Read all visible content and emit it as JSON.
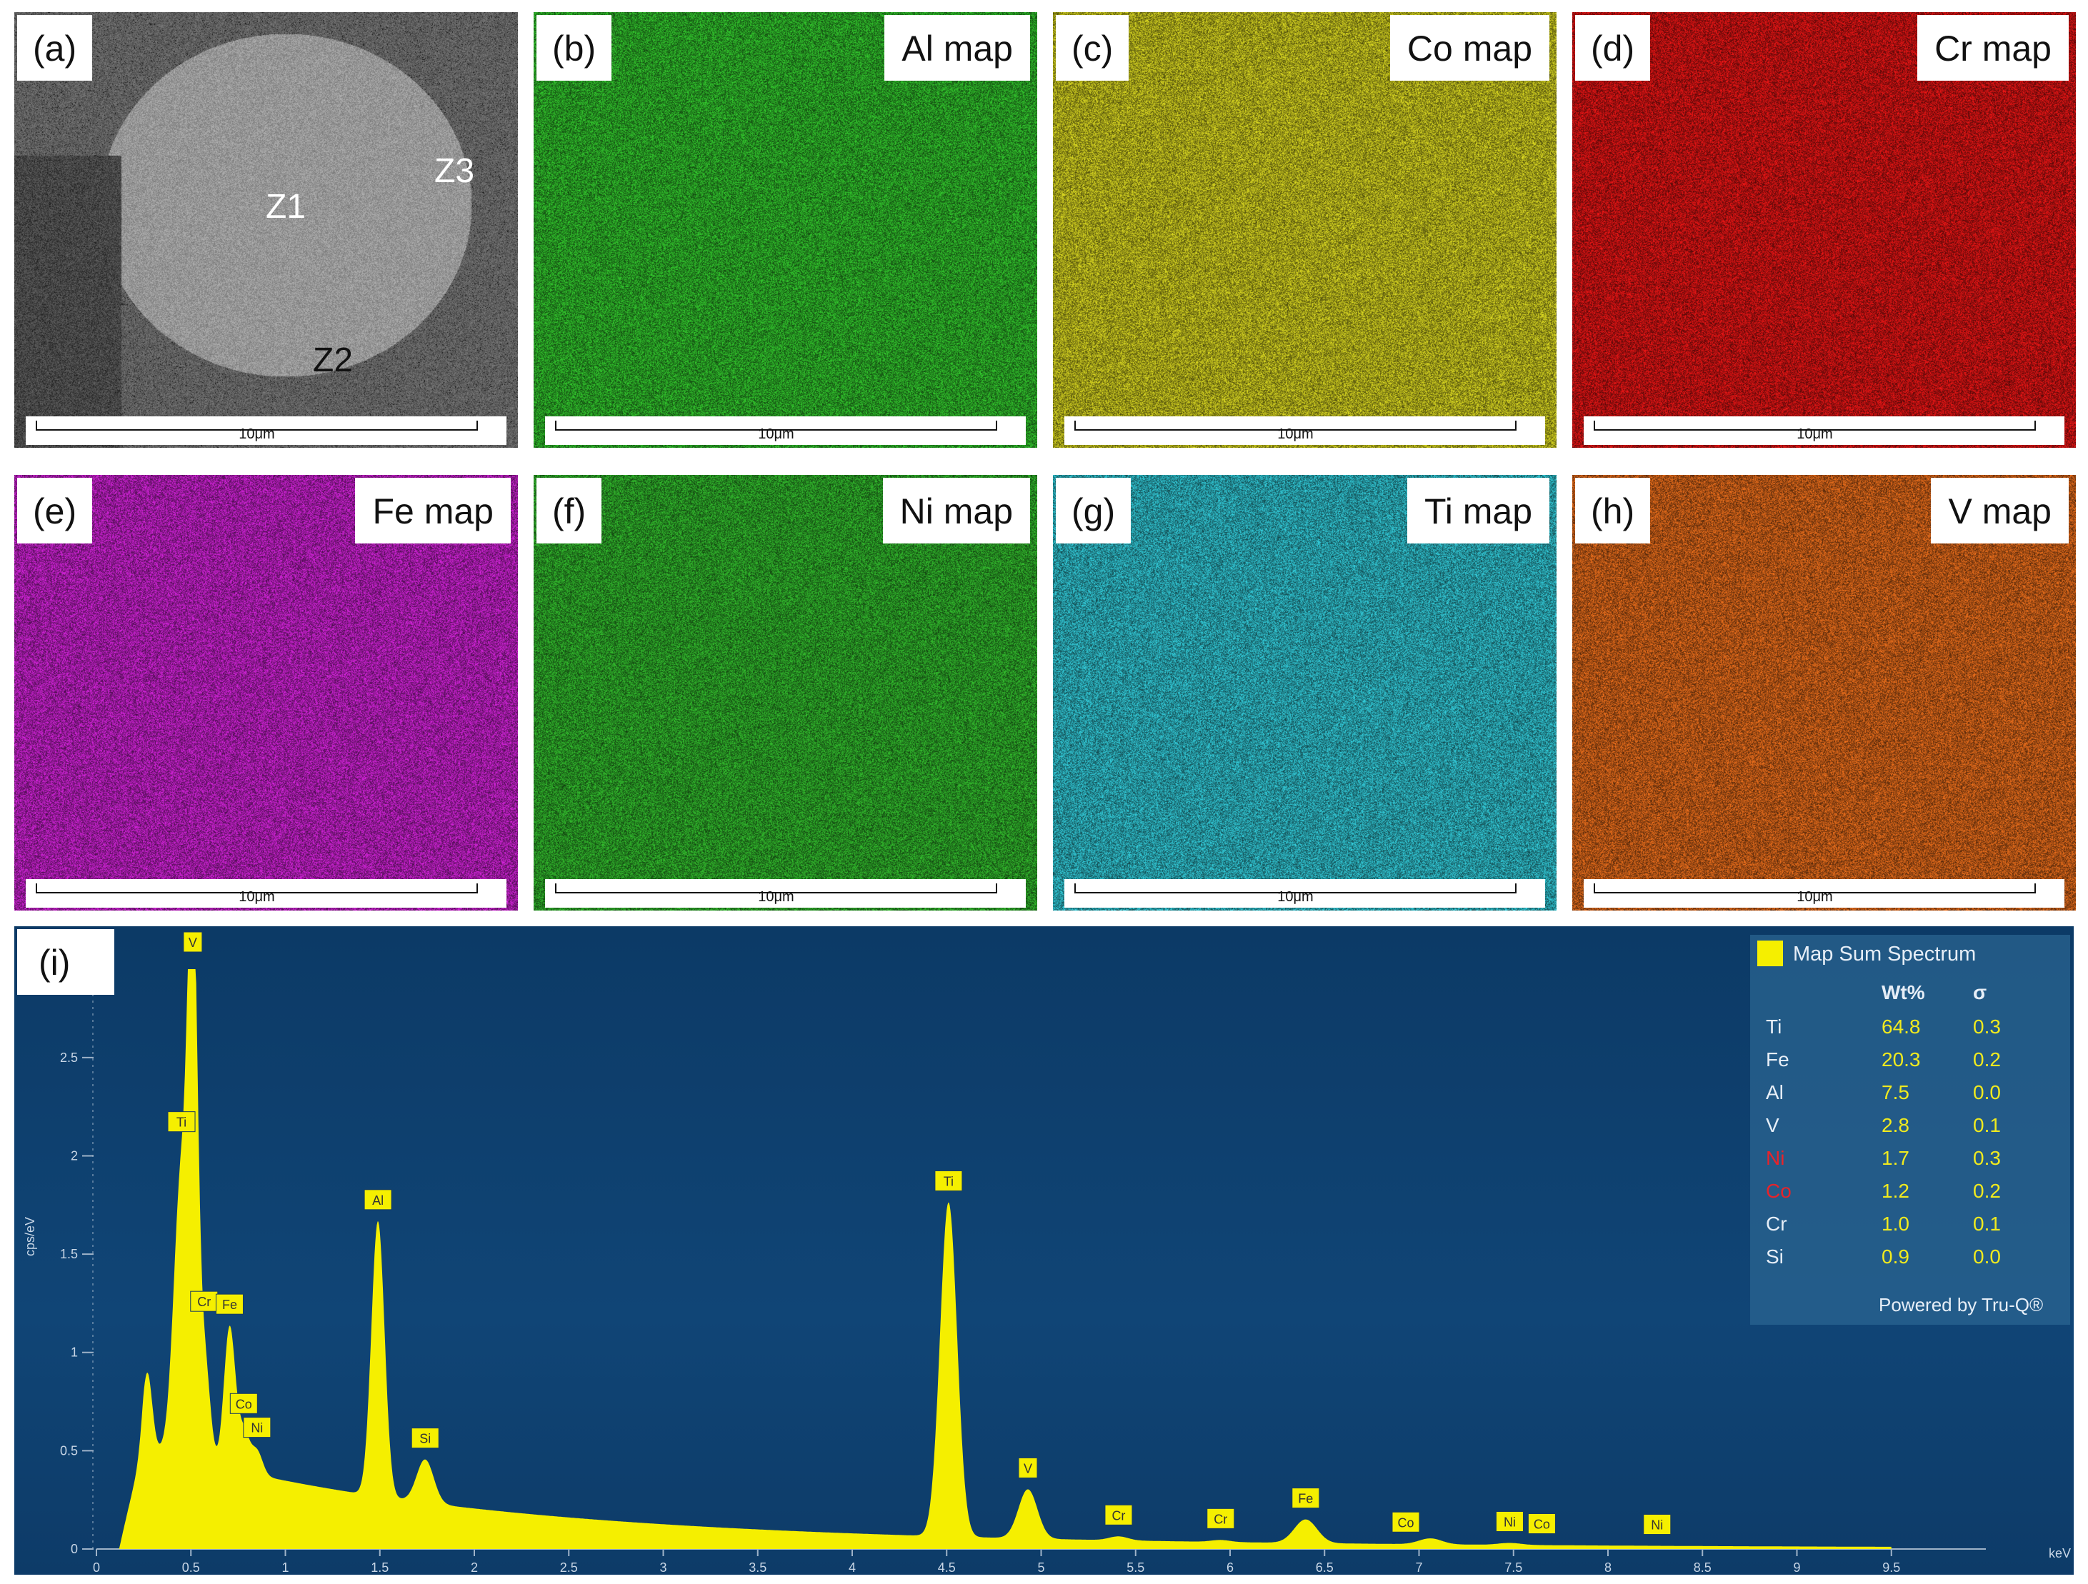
{
  "panels": [
    {
      "id": "a",
      "label": "(a)",
      "map": "",
      "scale": "10μm",
      "color": "#8a8a8a"
    },
    {
      "id": "b",
      "label": "(b)",
      "map": "Al map",
      "scale": "10μm",
      "color": "#2fb82a"
    },
    {
      "id": "c",
      "label": "(c)",
      "map": "Co map",
      "scale": "10μm",
      "color": "#c9c71f"
    },
    {
      "id": "d",
      "label": "(d)",
      "map": "Cr map",
      "scale": "10μm",
      "color": "#d81414"
    },
    {
      "id": "e",
      "label": "(e)",
      "map": "Fe map",
      "scale": "10μm",
      "color": "#c321c9"
    },
    {
      "id": "f",
      "label": "(f)",
      "map": "Ni map",
      "scale": "10μm",
      "color": "#2fae2a"
    },
    {
      "id": "g",
      "label": "(g)",
      "map": "Ti map",
      "scale": "10μm",
      "color": "#2fbcc9"
    },
    {
      "id": "h",
      "label": "(h)",
      "map": "V map",
      "scale": "10μm",
      "color": "#d9661a"
    }
  ],
  "zones": {
    "z1": "Z1",
    "z2": "Z2",
    "z3": "Z3"
  },
  "spectrum": {
    "label": "(i)",
    "bg_color": "#0f3f6c",
    "fill_color": "#f5ef00",
    "ylabel": "cps/eV",
    "xunit": "keV",
    "legend_title": "Map Sum Spectrum",
    "table_head": {
      "col1": "Wt%",
      "col2": "σ"
    },
    "powered": "Powered by Tru-Q®",
    "table": [
      {
        "el": "Ti",
        "wt": "64.8",
        "sigma": "0.3",
        "highlight": false
      },
      {
        "el": "Fe",
        "wt": "20.3",
        "sigma": "0.2",
        "highlight": false
      },
      {
        "el": "Al",
        "wt": "7.5",
        "sigma": "0.0",
        "highlight": false
      },
      {
        "el": "V",
        "wt": "2.8",
        "sigma": "0.1",
        "highlight": false
      },
      {
        "el": "Ni",
        "wt": "1.7",
        "sigma": "0.3",
        "highlight": true
      },
      {
        "el": "Co",
        "wt": "1.2",
        "sigma": "0.2",
        "highlight": true
      },
      {
        "el": "Cr",
        "wt": "1.0",
        "sigma": "0.1",
        "highlight": false
      },
      {
        "el": "Si",
        "wt": "0.9",
        "sigma": "0.0",
        "highlight": false
      }
    ],
    "x_ticks": [
      "0",
      "0.5",
      "1",
      "1.5",
      "2",
      "2.5",
      "3",
      "3.5",
      "4",
      "4.5",
      "5",
      "5.5",
      "6",
      "6.5",
      "7",
      "7.5",
      "8",
      "8.5",
      "9",
      "9.5"
    ],
    "y_ticks": [
      "0",
      "0.5",
      "1",
      "1.5",
      "2",
      "2.5"
    ],
    "xlim": [
      0,
      10
    ],
    "ylim": [
      0,
      2.95
    ],
    "peaks": [
      {
        "e": 0.27,
        "h": 0.38,
        "w": 0.025
      },
      {
        "e": 0.45,
        "h": 1.45,
        "w": 0.04
      },
      {
        "e": 0.51,
        "h": 2.6,
        "w": 0.025
      },
      {
        "e": 0.57,
        "h": 0.55,
        "w": 0.03
      },
      {
        "e": 0.705,
        "h": 0.72,
        "w": 0.03
      },
      {
        "e": 0.78,
        "h": 0.2,
        "w": 0.03
      },
      {
        "e": 0.85,
        "h": 0.12,
        "w": 0.03
      },
      {
        "e": 1.49,
        "h": 1.4,
        "w": 0.035
      },
      {
        "e": 1.74,
        "h": 0.22,
        "w": 0.045
      },
      {
        "e": 4.51,
        "h": 1.7,
        "w": 0.045
      },
      {
        "e": 4.93,
        "h": 0.25,
        "w": 0.05
      },
      {
        "e": 5.41,
        "h": 0.02,
        "w": 0.05
      },
      {
        "e": 5.95,
        "h": 0.01,
        "w": 0.05
      },
      {
        "e": 6.4,
        "h": 0.12,
        "w": 0.06
      },
      {
        "e": 7.06,
        "h": 0.03,
        "w": 0.06
      },
      {
        "e": 7.48,
        "h": 0.01,
        "w": 0.06
      }
    ],
    "peak_labels": [
      {
        "text": "V",
        "e": 0.51
      },
      {
        "text": "Ti",
        "e": 0.45
      },
      {
        "text": "Cr",
        "e": 0.57
      },
      {
        "text": "Fe",
        "e": 0.705
      },
      {
        "text": "Ni",
        "e": 0.85
      },
      {
        "text": "Co",
        "e": 0.78
      },
      {
        "text": "Al",
        "e": 1.49
      },
      {
        "text": "Si",
        "e": 1.74
      },
      {
        "text": "Ti",
        "e": 4.51
      },
      {
        "text": "V",
        "e": 4.93
      },
      {
        "text": "Cr",
        "e": 5.41
      },
      {
        "text": "Cr",
        "e": 5.95
      },
      {
        "text": "Fe",
        "e": 6.4
      },
      {
        "text": "Co",
        "e": 6.93
      },
      {
        "text": "Ni",
        "e": 7.48
      },
      {
        "text": "Co",
        "e": 7.65
      },
      {
        "text": "Ni",
        "e": 8.26
      }
    ]
  }
}
